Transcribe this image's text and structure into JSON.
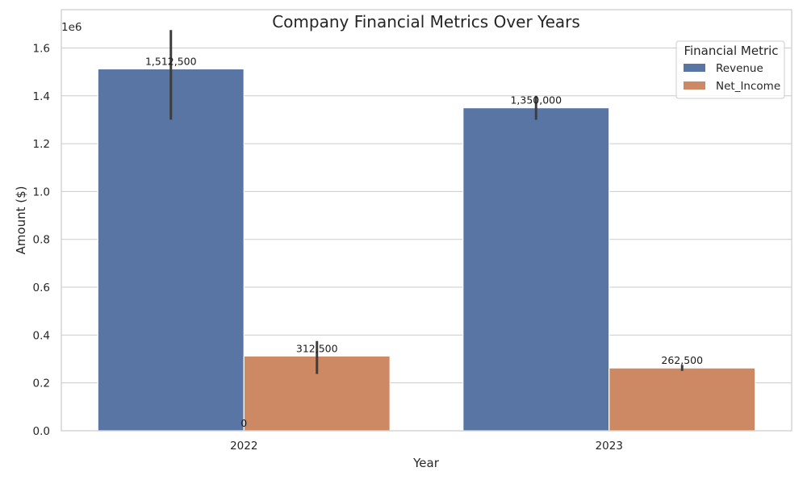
{
  "chart_data": {
    "type": "bar",
    "title": "Company Financial Metrics Over Years",
    "xlabel": "Year",
    "ylabel": "Amount ($)",
    "y_scale_label": "1e6",
    "categories": [
      "2022",
      "2023"
    ],
    "ylim": [
      0,
      1760000
    ],
    "yticks": [
      0,
      200000,
      400000,
      600000,
      800000,
      1000000,
      1200000,
      1400000,
      1600000
    ],
    "ytick_labels": [
      "0.0",
      "0.2",
      "0.4",
      "0.6",
      "0.8",
      "1.0",
      "1.2",
      "1.4",
      "1.6"
    ],
    "grid": true,
    "legend": {
      "title": "Financial Metric",
      "placement": "top-right"
    },
    "series": [
      {
        "name": "Revenue",
        "color": "#5975a4",
        "values": [
          1512500,
          1350000
        ],
        "labels": [
          "1,512,500",
          "1,350,000"
        ],
        "error_low": [
          1300000,
          1300000
        ],
        "error_high": [
          1675000,
          1400000
        ]
      },
      {
        "name": "Net_Income",
        "color": "#cc8963",
        "values": [
          312500,
          262500
        ],
        "labels": [
          "312,500",
          "262,500"
        ],
        "error_low": [
          237500,
          250000
        ],
        "error_high": [
          375000,
          275000
        ]
      }
    ],
    "annotations": [
      {
        "text": "0",
        "x": "2022",
        "y": 0
      }
    ]
  }
}
